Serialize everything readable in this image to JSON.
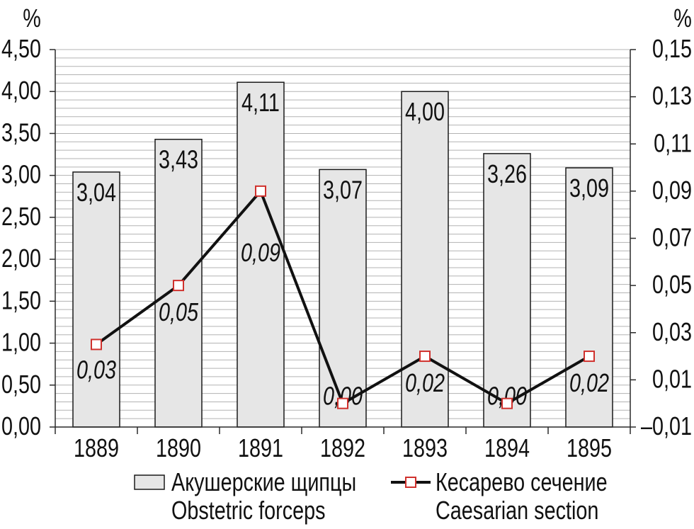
{
  "chart_data": {
    "type": "bar",
    "categories": [
      "1889",
      "1890",
      "1891",
      "1892",
      "1893",
      "1894",
      "1895"
    ],
    "ylabel": "%",
    "ylim": [
      0,
      4.5
    ],
    "yticks": [
      0,
      0.5,
      1.0,
      1.5,
      2.0,
      2.5,
      3.0,
      3.5,
      4.0,
      4.5
    ],
    "ytick_labels": [
      "0,00",
      "0,50",
      "1,00",
      "1,50",
      "2,00",
      "2,50",
      "3,00",
      "3,50",
      "4,00",
      "4,50"
    ],
    "y2label": "%",
    "y2lim": [
      -0.01,
      0.15
    ],
    "y2ticks": [
      -0.01,
      0.01,
      0.03,
      0.05,
      0.07,
      0.09,
      0.11,
      0.13,
      0.15
    ],
    "y2tick_labels": [
      "–0,01",
      "0,01",
      "0,03",
      "0,05",
      "0,07",
      "0,09",
      "0,11",
      "0,13",
      "0,15"
    ],
    "grid": true,
    "legend": "bottom",
    "series": [
      {
        "name": "Акушерские щипцы",
        "name_en": "Obstetric forceps",
        "type": "bar",
        "secondary_axis": false,
        "values": [
          3.04,
          3.43,
          4.11,
          3.07,
          4.0,
          3.26,
          3.09
        ],
        "labels": [
          "3,04",
          "3,43",
          "4,11",
          "3,07",
          "4,00",
          "3,26",
          "3,09"
        ]
      },
      {
        "name": "Кесарево сечение",
        "name_en": "Caesarian section",
        "type": "line",
        "secondary_axis": true,
        "values": [
          0.025,
          0.05,
          0.09,
          0.0,
          0.02,
          0.0,
          0.02
        ],
        "labels": [
          "0,03",
          "0,05",
          "0,09",
          "0,00",
          "0,02",
          "0,00",
          "0,02"
        ]
      }
    ],
    "colors": {
      "bar_fill": "#e6e6e6",
      "bar_edge": "#1a1a1a",
      "line": "#111111",
      "marker_edge": "#d0312d",
      "marker_fill": "#ffffff",
      "grid": "#b3b3b3",
      "axis": "#2a2a2a"
    }
  }
}
